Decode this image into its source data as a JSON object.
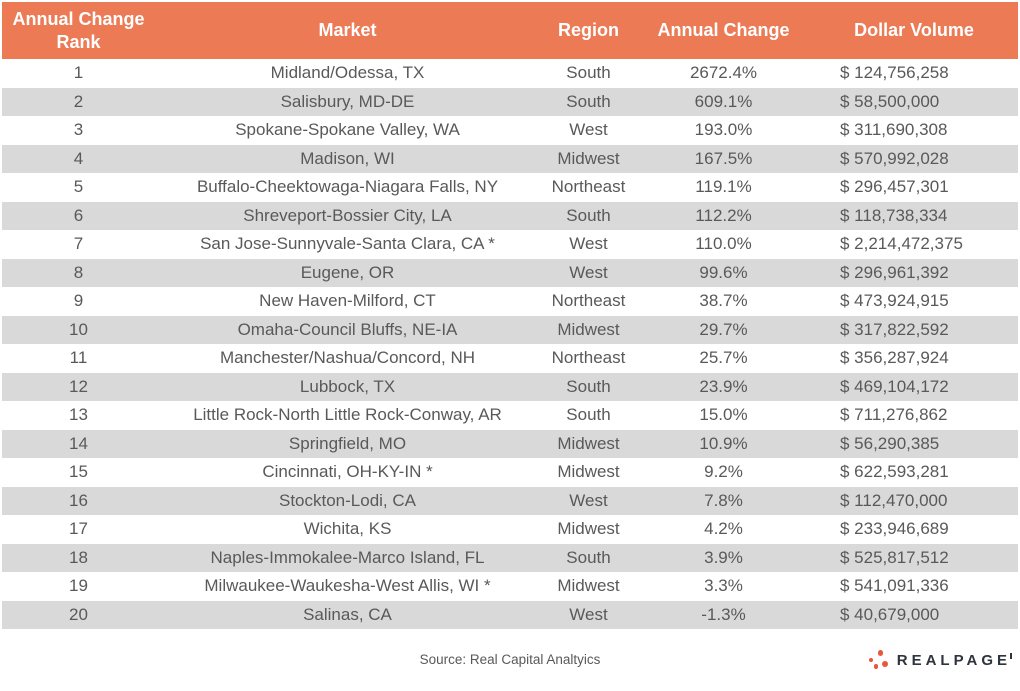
{
  "table": {
    "header": {
      "rank_line1": "Annual Change",
      "rank_line2": "Rank",
      "market": "Market",
      "region": "Region",
      "annual_change": "Annual Change",
      "dollar_volume": "Dollar Volume"
    }
  },
  "chart_data": {
    "type": "table",
    "columns": [
      "Annual Change Rank",
      "Market",
      "Region",
      "Annual Change",
      "Dollar Volume"
    ],
    "rows": [
      [
        "1",
        "Midland/Odessa, TX",
        "South",
        "2672.4%",
        "$ 124,756,258"
      ],
      [
        "2",
        "Salisbury, MD-DE",
        "South",
        "609.1%",
        "$ 58,500,000"
      ],
      [
        "3",
        "Spokane-Spokane Valley, WA",
        "West",
        "193.0%",
        "$ 311,690,308"
      ],
      [
        "4",
        "Madison, WI",
        "Midwest",
        "167.5%",
        "$ 570,992,028"
      ],
      [
        "5",
        "Buffalo-Cheektowaga-Niagara Falls, NY",
        "Northeast",
        "119.1%",
        "$ 296,457,301"
      ],
      [
        "6",
        "Shreveport-Bossier City, LA",
        "South",
        "112.2%",
        "$ 118,738,334"
      ],
      [
        "7",
        "San Jose-Sunnyvale-Santa Clara, CA *",
        "West",
        "110.0%",
        "$ 2,214,472,375"
      ],
      [
        "8",
        "Eugene, OR",
        "West",
        "99.6%",
        "$ 296,961,392"
      ],
      [
        "9",
        "New Haven-Milford, CT",
        "Northeast",
        "38.7%",
        "$ 473,924,915"
      ],
      [
        "10",
        "Omaha-Council Bluffs, NE-IA",
        "Midwest",
        "29.7%",
        "$ 317,822,592"
      ],
      [
        "11",
        "Manchester/Nashua/Concord, NH",
        "Northeast",
        "25.7%",
        "$ 356,287,924"
      ],
      [
        "12",
        "Lubbock, TX",
        "South",
        "23.9%",
        "$ 469,104,172"
      ],
      [
        "13",
        "Little Rock-North Little Rock-Conway, AR",
        "South",
        "15.0%",
        "$ 711,276,862"
      ],
      [
        "14",
        "Springfield, MO",
        "Midwest",
        "10.9%",
        "$ 56,290,385"
      ],
      [
        "15",
        "Cincinnati, OH-KY-IN *",
        "Midwest",
        "9.2%",
        "$ 622,593,281"
      ],
      [
        "16",
        "Stockton-Lodi, CA",
        "West",
        "7.8%",
        "$ 112,470,000"
      ],
      [
        "17",
        "Wichita, KS",
        "Midwest",
        "4.2%",
        "$ 233,946,689"
      ],
      [
        "18",
        "Naples-Immokalee-Marco Island, FL",
        "South",
        "3.9%",
        "$ 525,817,512"
      ],
      [
        "19",
        "Milwaukee-Waukesha-West Allis, WI *",
        "Midwest",
        "3.3%",
        "$ 541,091,336"
      ],
      [
        "20",
        "Salinas, CA",
        "West",
        "-1.3%",
        "$ 40,679,000"
      ]
    ]
  },
  "footer": {
    "source": "Source: Real Capital Analtyics",
    "logo_text": "REALPAGE"
  },
  "colors": {
    "header_bg": "#EC7A55",
    "stripe_bg": "#D9D9D9",
    "body_text": "#595959",
    "header_text": "#FFFFFF",
    "logo_text": "#2E343B",
    "logo_dots": "#E8583C"
  }
}
